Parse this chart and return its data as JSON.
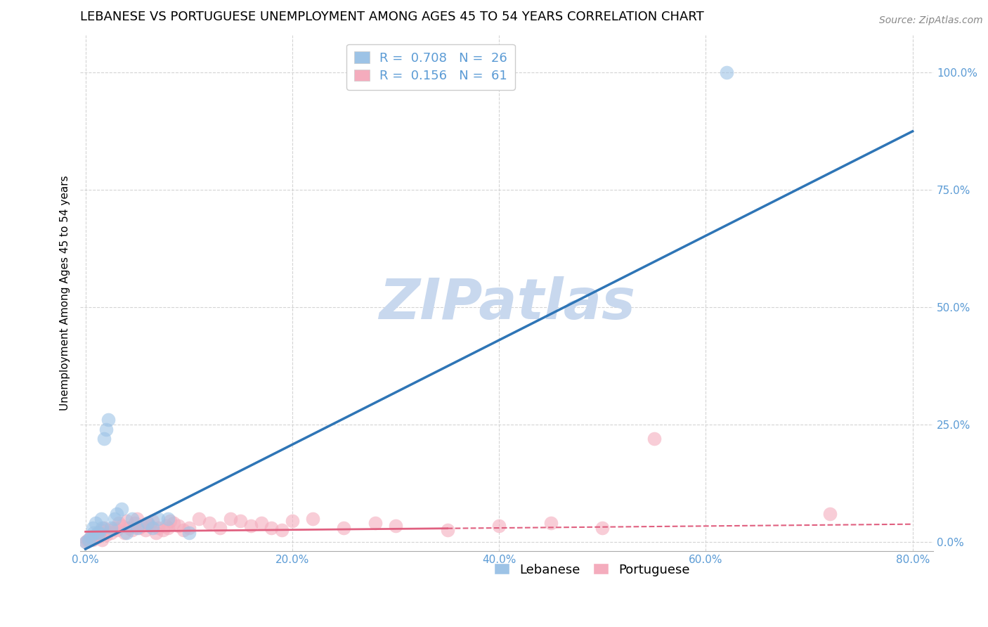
{
  "title": "LEBANESE VS PORTUGUESE UNEMPLOYMENT AMONG AGES 45 TO 54 YEARS CORRELATION CHART",
  "source": "Source: ZipAtlas.com",
  "ylabel": "Unemployment Among Ages 45 to 54 years",
  "xlim": [
    -0.005,
    0.82
  ],
  "ylim": [
    -0.02,
    1.08
  ],
  "xticks": [
    0.0,
    0.2,
    0.4,
    0.6,
    0.8
  ],
  "xtick_labels": [
    "0.0%",
    "20.0%",
    "40.0%",
    "60.0%",
    "80.0%"
  ],
  "yticks": [
    0.0,
    0.25,
    0.5,
    0.75,
    1.0
  ],
  "ytick_labels": [
    "0.0%",
    "25.0%",
    "50.0%",
    "75.0%",
    "100.0%"
  ],
  "tick_color": "#5b9bd5",
  "grid_color": "#d0d0d0",
  "background_color": "#ffffff",
  "watermark_text": "ZIPatlas",
  "watermark_color": "#c8d8ee",
  "lebanese_R": 0.708,
  "lebanese_N": 26,
  "portuguese_R": 0.156,
  "portuguese_N": 61,
  "lebanese_color": "#9dc3e6",
  "portuguese_color": "#f4acbd",
  "lebanese_line_color": "#2e75b6",
  "portuguese_line_color": "#e06080",
  "lebanese_x": [
    0.0,
    0.003,
    0.005,
    0.007,
    0.008,
    0.01,
    0.012,
    0.013,
    0.015,
    0.016,
    0.018,
    0.02,
    0.022,
    0.025,
    0.028,
    0.03,
    0.035,
    0.04,
    0.045,
    0.05,
    0.06,
    0.065,
    0.07,
    0.08,
    0.1,
    0.62
  ],
  "lebanese_y": [
    0.0,
    0.005,
    0.01,
    0.03,
    0.02,
    0.04,
    0.02,
    0.02,
    0.05,
    0.03,
    0.22,
    0.24,
    0.26,
    0.03,
    0.05,
    0.06,
    0.07,
    0.02,
    0.05,
    0.03,
    0.04,
    0.03,
    0.05,
    0.05,
    0.02,
    1.0
  ],
  "portuguese_x": [
    0.0,
    0.002,
    0.004,
    0.005,
    0.007,
    0.008,
    0.01,
    0.012,
    0.013,
    0.015,
    0.016,
    0.018,
    0.02,
    0.022,
    0.025,
    0.028,
    0.03,
    0.032,
    0.035,
    0.038,
    0.04,
    0.042,
    0.045,
    0.048,
    0.05,
    0.052,
    0.055,
    0.058,
    0.06,
    0.062,
    0.065,
    0.068,
    0.07,
    0.075,
    0.078,
    0.08,
    0.082,
    0.085,
    0.09,
    0.095,
    0.1,
    0.11,
    0.12,
    0.13,
    0.14,
    0.15,
    0.16,
    0.17,
    0.18,
    0.19,
    0.2,
    0.22,
    0.25,
    0.28,
    0.3,
    0.35,
    0.4,
    0.45,
    0.5,
    0.55,
    0.72
  ],
  "portuguese_y": [
    0.0,
    0.003,
    0.005,
    0.01,
    0.005,
    0.008,
    0.015,
    0.01,
    0.02,
    0.025,
    0.005,
    0.03,
    0.015,
    0.025,
    0.02,
    0.03,
    0.025,
    0.04,
    0.035,
    0.02,
    0.045,
    0.03,
    0.025,
    0.04,
    0.05,
    0.03,
    0.035,
    0.025,
    0.04,
    0.035,
    0.045,
    0.02,
    0.03,
    0.025,
    0.035,
    0.03,
    0.045,
    0.04,
    0.035,
    0.025,
    0.03,
    0.05,
    0.04,
    0.03,
    0.05,
    0.045,
    0.035,
    0.04,
    0.03,
    0.025,
    0.045,
    0.05,
    0.03,
    0.04,
    0.035,
    0.025,
    0.035,
    0.04,
    0.03,
    0.22,
    0.06
  ],
  "leb_line_x0": 0.0,
  "leb_line_y0": -0.015,
  "leb_line_x1": 0.8,
  "leb_line_y1": 0.875,
  "port_line_x0": 0.0,
  "port_line_y0": 0.022,
  "port_line_x1": 0.8,
  "port_line_y1": 0.038,
  "title_fontsize": 13,
  "axis_label_fontsize": 11,
  "tick_fontsize": 11,
  "legend_fontsize": 13
}
